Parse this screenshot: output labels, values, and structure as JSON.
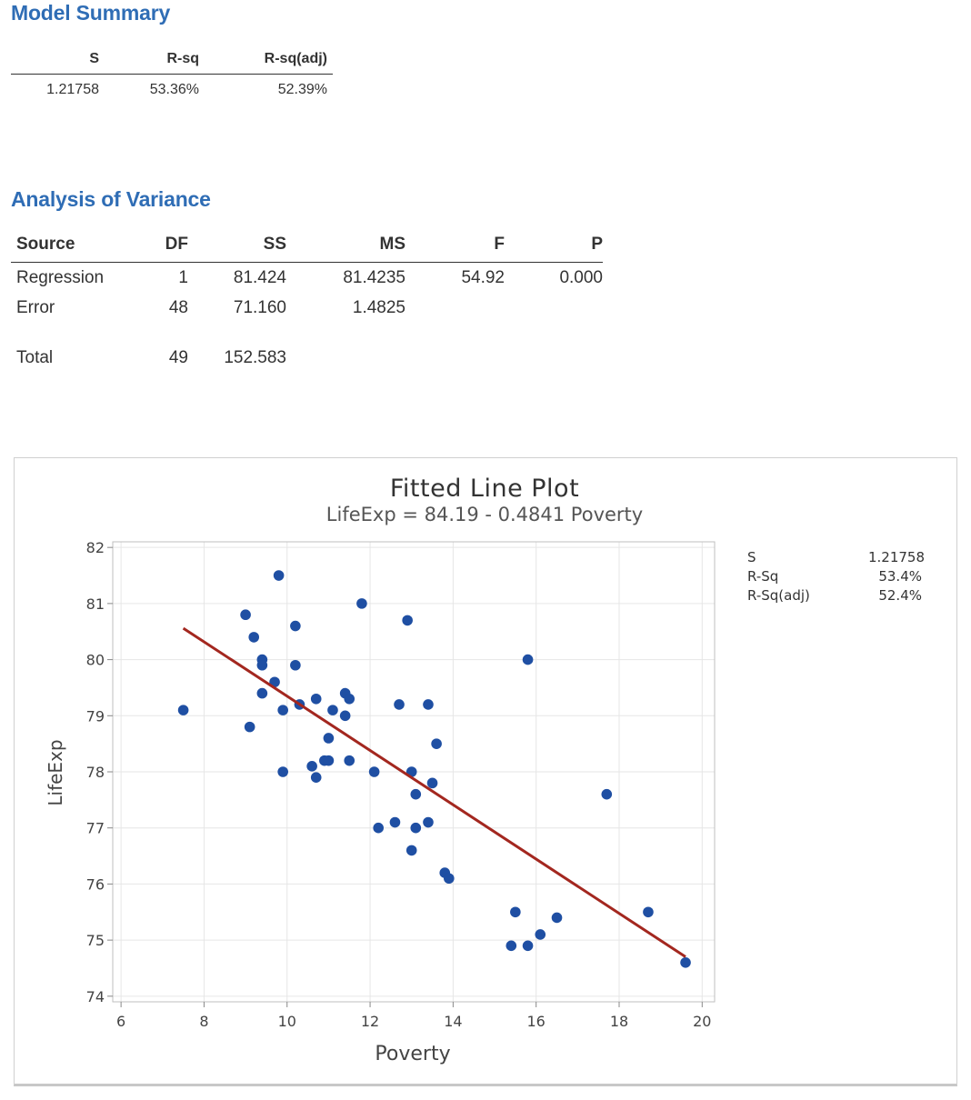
{
  "model_summary": {
    "title": "Model Summary",
    "headers": [
      "S",
      "R-sq",
      "R-sq(adj)"
    ],
    "values": [
      "1.21758",
      "53.36%",
      "52.39%"
    ]
  },
  "anova": {
    "title": "Analysis of Variance",
    "headers": [
      "Source",
      "DF",
      "SS",
      "MS",
      "F",
      "P"
    ],
    "rows": [
      [
        "Regression",
        "1",
        "81.424",
        "81.4235",
        "54.92",
        "0.000"
      ],
      [
        "Error",
        "48",
        "71.160",
        "1.4825",
        "",
        ""
      ],
      [
        "Total",
        "49",
        "152.583",
        "",
        "",
        ""
      ]
    ]
  },
  "colors": {
    "heading": "#2f6db5",
    "point": "#1f4fa3",
    "fit_line": "#a3271f"
  },
  "chart_data": {
    "type": "scatter",
    "title": "Fitted Line Plot",
    "subtitle": "LifeExp = 84.19 - 0.4841 Poverty",
    "xlabel": "Poverty",
    "ylabel": "LifeExp",
    "xlim": [
      5.8,
      20.3
    ],
    "ylim": [
      73.9,
      82.1
    ],
    "xticks": [
      6,
      8,
      10,
      12,
      14,
      16,
      18,
      20
    ],
    "yticks": [
      74,
      75,
      76,
      77,
      78,
      79,
      80,
      81,
      82
    ],
    "grid": true,
    "legend": {
      "position": "top-right",
      "labels": [
        "S",
        "R-Sq",
        "R-Sq(adj)"
      ],
      "values": [
        "1.21758",
        "53.4%",
        "52.4%"
      ]
    },
    "fit_line": {
      "intercept": 84.19,
      "slope": -0.4841,
      "x_range": [
        7.5,
        19.6
      ]
    },
    "points": [
      [
        7.5,
        79.1
      ],
      [
        9.0,
        80.8
      ],
      [
        9.1,
        78.8
      ],
      [
        9.2,
        80.4
      ],
      [
        9.4,
        80.0
      ],
      [
        9.4,
        79.9
      ],
      [
        9.4,
        79.4
      ],
      [
        9.7,
        79.6
      ],
      [
        9.8,
        81.5
      ],
      [
        9.9,
        79.1
      ],
      [
        9.9,
        78.0
      ],
      [
        10.2,
        80.6
      ],
      [
        10.2,
        79.9
      ],
      [
        10.3,
        79.2
      ],
      [
        10.6,
        78.1
      ],
      [
        10.7,
        79.3
      ],
      [
        10.7,
        77.9
      ],
      [
        10.9,
        78.2
      ],
      [
        11.0,
        78.6
      ],
      [
        11.0,
        78.2
      ],
      [
        11.1,
        79.1
      ],
      [
        11.4,
        79.4
      ],
      [
        11.4,
        79.0
      ],
      [
        11.5,
        79.3
      ],
      [
        11.5,
        78.2
      ],
      [
        11.8,
        81.0
      ],
      [
        12.1,
        78.0
      ],
      [
        12.2,
        77.0
      ],
      [
        12.6,
        77.1
      ],
      [
        12.7,
        79.2
      ],
      [
        12.9,
        80.7
      ],
      [
        13.0,
        78.0
      ],
      [
        13.0,
        76.6
      ],
      [
        13.1,
        77.6
      ],
      [
        13.1,
        77.0
      ],
      [
        13.4,
        79.2
      ],
      [
        13.4,
        77.1
      ],
      [
        13.5,
        77.8
      ],
      [
        13.6,
        78.5
      ],
      [
        13.8,
        76.2
      ],
      [
        13.9,
        76.1
      ],
      [
        15.4,
        74.9
      ],
      [
        15.5,
        75.5
      ],
      [
        15.8,
        80.0
      ],
      [
        15.8,
        74.9
      ],
      [
        16.1,
        75.1
      ],
      [
        16.5,
        75.4
      ],
      [
        17.7,
        77.6
      ],
      [
        18.7,
        75.5
      ],
      [
        19.6,
        74.6
      ]
    ]
  }
}
